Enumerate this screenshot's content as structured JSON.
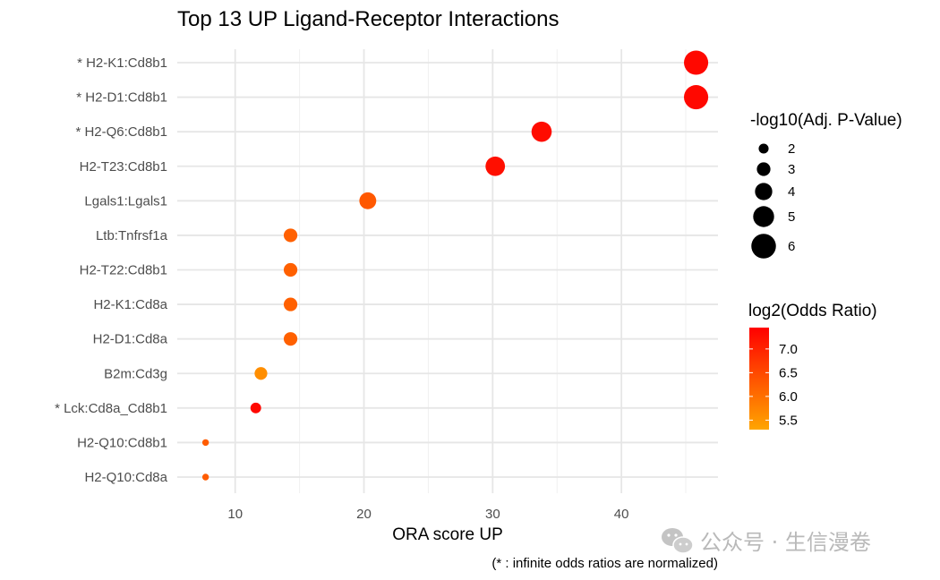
{
  "chart_data": {
    "type": "scatter",
    "title": "Top 13 UP Ligand-Receptor Interactions",
    "xlabel": "ORA score UP",
    "ylabel": "",
    "caption": "(* : infinite odds ratios are normalized)",
    "xlim": [
      5.5,
      47.5
    ],
    "xticks": [
      10,
      20,
      30,
      40
    ],
    "grid": true,
    "legend_position": "right",
    "points": [
      {
        "label": "* H2-K1:Cd8b1",
        "x": 45.8,
        "neglog10_padj": 5.9,
        "log2_or": 7.35
      },
      {
        "label": "* H2-D1:Cd8b1",
        "x": 45.8,
        "neglog10_padj": 5.9,
        "log2_or": 7.35
      },
      {
        "label": "* H2-Q6:Cd8b1",
        "x": 33.8,
        "neglog10_padj": 4.8,
        "log2_or": 7.3
      },
      {
        "label": "H2-T23:Cd8b1",
        "x": 30.2,
        "neglog10_padj": 4.6,
        "log2_or": 7.25
      },
      {
        "label": "Lgals1:Lgals1",
        "x": 20.3,
        "neglog10_padj": 3.9,
        "log2_or": 6.3
      },
      {
        "label": "Ltb:Tnfrsf1a",
        "x": 14.3,
        "neglog10_padj": 3.0,
        "log2_or": 6.2
      },
      {
        "label": "H2-T22:Cd8b1",
        "x": 14.3,
        "neglog10_padj": 3.0,
        "log2_or": 6.2
      },
      {
        "label": "H2-K1:Cd8a",
        "x": 14.3,
        "neglog10_padj": 3.0,
        "log2_or": 6.2
      },
      {
        "label": "H2-D1:Cd8a",
        "x": 14.3,
        "neglog10_padj": 3.0,
        "log2_or": 6.2
      },
      {
        "label": "B2m:Cd3g",
        "x": 12.0,
        "neglog10_padj": 2.75,
        "log2_or": 5.6
      },
      {
        "label": "* Lck:Cd8a_Cd8b1",
        "x": 11.6,
        "neglog10_padj": 2.2,
        "log2_or": 7.35
      },
      {
        "label": "H2-Q10:Cd8b1",
        "x": 7.7,
        "neglog10_padj": 1.1,
        "log2_or": 6.25
      },
      {
        "label": "H2-Q10:Cd8a",
        "x": 7.7,
        "neglog10_padj": 1.1,
        "log2_or": 6.25
      }
    ],
    "size_legend": {
      "title": "-log10(Adj. P-Value)",
      "breaks": [
        2,
        3,
        4,
        5,
        6
      ],
      "labels": [
        "2",
        "3",
        "4",
        "5",
        "6"
      ]
    },
    "color_legend": {
      "title": "log2(Odds Ratio)",
      "breaks": [
        7.0,
        6.5,
        6.0,
        5.5
      ],
      "labels": [
        "7.0",
        "6.5",
        "6.0",
        "5.5"
      ],
      "range": [
        5.3,
        7.45
      ],
      "low_color": "#ffa500",
      "high_color": "#ff0000"
    }
  },
  "watermark": {
    "text": "公众号 · 生信漫卷",
    "icon": "wechat-icon"
  }
}
